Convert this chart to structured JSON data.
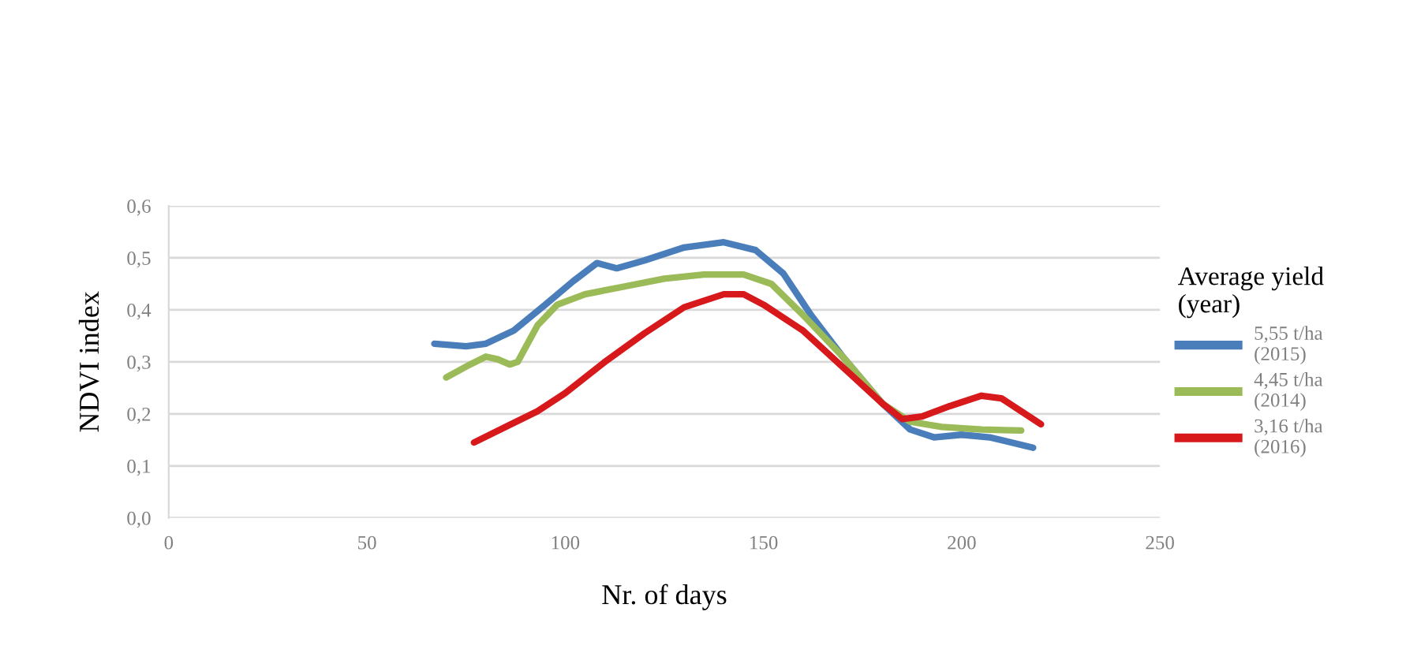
{
  "chart_data": {
    "type": "line",
    "xlabel": "Nr. of days",
    "ylabel": "NDVI index",
    "legend_title": "Average yield\n(year)",
    "legend": "right",
    "grid": "y",
    "marker": "none",
    "line_style": "solid",
    "xlim": [
      0,
      250
    ],
    "xticks": [
      0,
      50,
      100,
      150,
      200,
      250
    ],
    "ylim": [
      0,
      0.6
    ],
    "yticks": [
      {
        "value": 0,
        "label": "0,0"
      },
      {
        "value": 0.1,
        "label": "0,1"
      },
      {
        "value": 0.2,
        "label": "0,2"
      },
      {
        "value": 0.3,
        "label": "0,3"
      },
      {
        "value": 0.4,
        "label": "0,4"
      },
      {
        "value": 0.5,
        "label": "0,5"
      },
      {
        "value": 0.6,
        "label": "0,6"
      }
    ],
    "series": [
      {
        "name": "5,55 t/ha\n(2015)",
        "color": "#4a7ebb",
        "x": [
          67,
          75,
          80,
          87,
          95,
          102,
          108,
          113,
          120,
          130,
          140,
          148,
          155,
          162,
          170,
          180,
          187,
          193,
          200,
          207,
          218
        ],
        "values": [
          0.335,
          0.33,
          0.335,
          0.36,
          0.41,
          0.455,
          0.49,
          0.48,
          0.495,
          0.52,
          0.53,
          0.515,
          0.47,
          0.39,
          0.31,
          0.22,
          0.17,
          0.155,
          0.16,
          0.155,
          0.135
        ]
      },
      {
        "name": "4,45 t/ha\n(2014)",
        "color": "#9bbb59",
        "x": [
          70,
          76,
          80,
          83,
          86,
          88,
          93,
          98,
          105,
          115,
          125,
          135,
          145,
          152,
          160,
          170,
          180,
          187,
          195,
          205,
          215
        ],
        "values": [
          0.27,
          0.295,
          0.31,
          0.305,
          0.295,
          0.3,
          0.37,
          0.41,
          0.43,
          0.445,
          0.46,
          0.468,
          0.468,
          0.45,
          0.39,
          0.31,
          0.22,
          0.185,
          0.175,
          0.17,
          0.168
        ]
      },
      {
        "name": "3,16 t/ha\n(2016)",
        "color": "#d7191c",
        "x": [
          77,
          85,
          93,
          100,
          110,
          120,
          130,
          140,
          145,
          150,
          160,
          170,
          180,
          185,
          190,
          197,
          205,
          210,
          215,
          220
        ],
        "values": [
          0.145,
          0.175,
          0.205,
          0.24,
          0.3,
          0.355,
          0.405,
          0.43,
          0.43,
          0.41,
          0.36,
          0.29,
          0.22,
          0.19,
          0.195,
          0.215,
          0.235,
          0.23,
          0.205,
          0.18
        ]
      }
    ]
  }
}
